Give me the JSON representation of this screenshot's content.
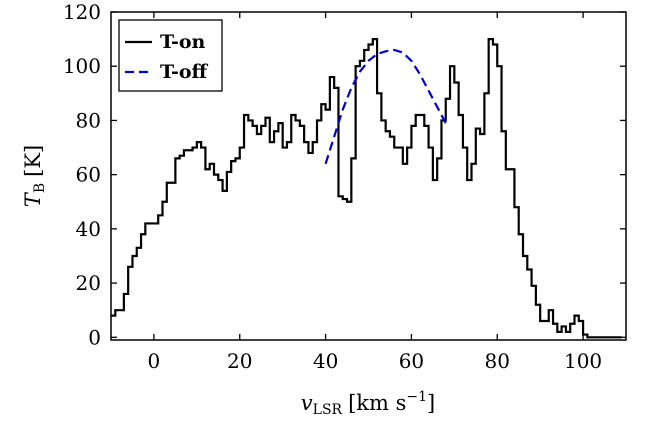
{
  "chart_data": {
    "type": "line",
    "xlabel_main": "v",
    "xlabel_sub": "LSR",
    "xlabel_unit_pre": "[km s",
    "xlabel_unit_sup": "−1",
    "xlabel_unit_post": "]",
    "ylabel_main": "T",
    "ylabel_sub": "B",
    "ylabel_unit": "[K]",
    "xlim": [
      -10,
      110
    ],
    "ylim": [
      -1,
      120
    ],
    "xticks": [
      0,
      20,
      40,
      60,
      80,
      100
    ],
    "yticks": [
      0,
      20,
      40,
      60,
      80,
      100,
      120
    ],
    "grid": false,
    "legend_position": "top-left",
    "series": [
      {
        "name": "T-on",
        "style": "steps",
        "color": "#000000",
        "x": [
          -10,
          -9,
          -8,
          -7,
          -6,
          -5,
          -4,
          -3,
          -2,
          -1,
          0,
          1,
          2,
          3,
          4,
          5,
          6,
          7,
          8,
          9,
          10,
          11,
          12,
          13,
          14,
          15,
          16,
          17,
          18,
          19,
          20,
          21,
          22,
          23,
          24,
          25,
          26,
          27,
          28,
          29,
          30,
          31,
          32,
          33,
          34,
          35,
          36,
          37,
          38,
          39,
          40,
          41,
          42,
          43,
          44,
          45,
          46,
          47,
          48,
          49,
          50,
          51,
          52,
          53,
          54,
          55,
          56,
          57,
          58,
          59,
          60,
          61,
          62,
          63,
          64,
          65,
          66,
          67,
          68,
          69,
          70,
          71,
          72,
          73,
          74,
          75,
          76,
          77,
          78,
          79,
          80,
          81,
          82,
          83,
          84,
          85,
          86,
          87,
          88,
          89,
          90,
          91,
          92,
          93,
          94,
          95,
          96,
          97,
          98,
          99,
          100,
          101,
          102,
          103,
          104,
          105,
          106,
          107,
          108
        ],
        "values": [
          8,
          10,
          10,
          16,
          26,
          30,
          33,
          38,
          42,
          42,
          42,
          45,
          50,
          57,
          57,
          66,
          67,
          69,
          69,
          70,
          72,
          70,
          62,
          64,
          60,
          58,
          54,
          61,
          65,
          66,
          70,
          82,
          80,
          78,
          75,
          78,
          81,
          72,
          76,
          79,
          70,
          72,
          82,
          80,
          78,
          72,
          68,
          72,
          80,
          86,
          84,
          96,
          92,
          52,
          51,
          50,
          66,
          100,
          102,
          106,
          108,
          110,
          90,
          80,
          76,
          74,
          70,
          70,
          64,
          70,
          78,
          82,
          82,
          78,
          70,
          58,
          66,
          80,
          88,
          100,
          94,
          82,
          70,
          58,
          64,
          77,
          75,
          90,
          110,
          108,
          100,
          76,
          62,
          62,
          48,
          38,
          30,
          25,
          19,
          12,
          6,
          6,
          10,
          5,
          2,
          4,
          2,
          5,
          8,
          6,
          1,
          0,
          0,
          0,
          0,
          0,
          0,
          0,
          0
        ],
        "steps_note": ""
      },
      {
        "name": "T-off",
        "style": "dashed",
        "color": "#0000cc",
        "x": [
          40,
          42,
          44,
          46,
          48,
          50,
          52,
          54,
          56,
          58,
          60,
          62,
          64,
          66,
          68
        ],
        "values": [
          64,
          74,
          84,
          92,
          98,
          102,
          104.5,
          105.5,
          106,
          105,
          102,
          97,
          91,
          85,
          79
        ]
      }
    ]
  }
}
